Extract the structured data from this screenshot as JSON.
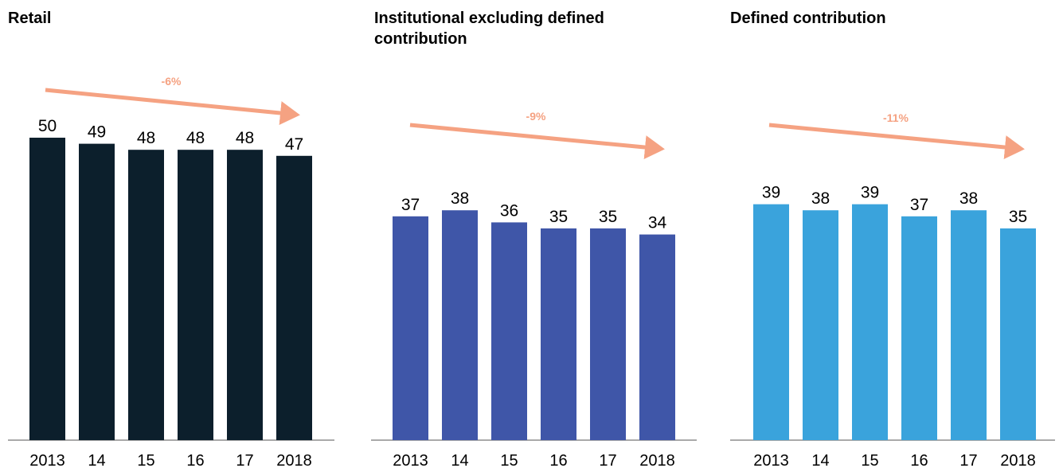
{
  "chart_data": [
    {
      "type": "bar",
      "title": "Retail",
      "categories": [
        "2013",
        "14",
        "15",
        "16",
        "17",
        "2018"
      ],
      "values": [
        50,
        49,
        48,
        48,
        48,
        47
      ],
      "color": "#0c1f2c",
      "annotation": "-6%"
    },
    {
      "type": "bar",
      "title": "Institutional excluding defined contribution",
      "categories": [
        "2013",
        "14",
        "15",
        "16",
        "17",
        "2018"
      ],
      "values": [
        37,
        38,
        36,
        35,
        35,
        34
      ],
      "color": "#3f56a8",
      "annotation": "-9%"
    },
    {
      "type": "bar",
      "title": "Defined contribution",
      "categories": [
        "2013",
        "14",
        "15",
        "16",
        "17",
        "2018"
      ],
      "values": [
        39,
        38,
        39,
        37,
        38,
        35
      ],
      "color": "#3aa3dc",
      "annotation": "-11%"
    }
  ]
}
